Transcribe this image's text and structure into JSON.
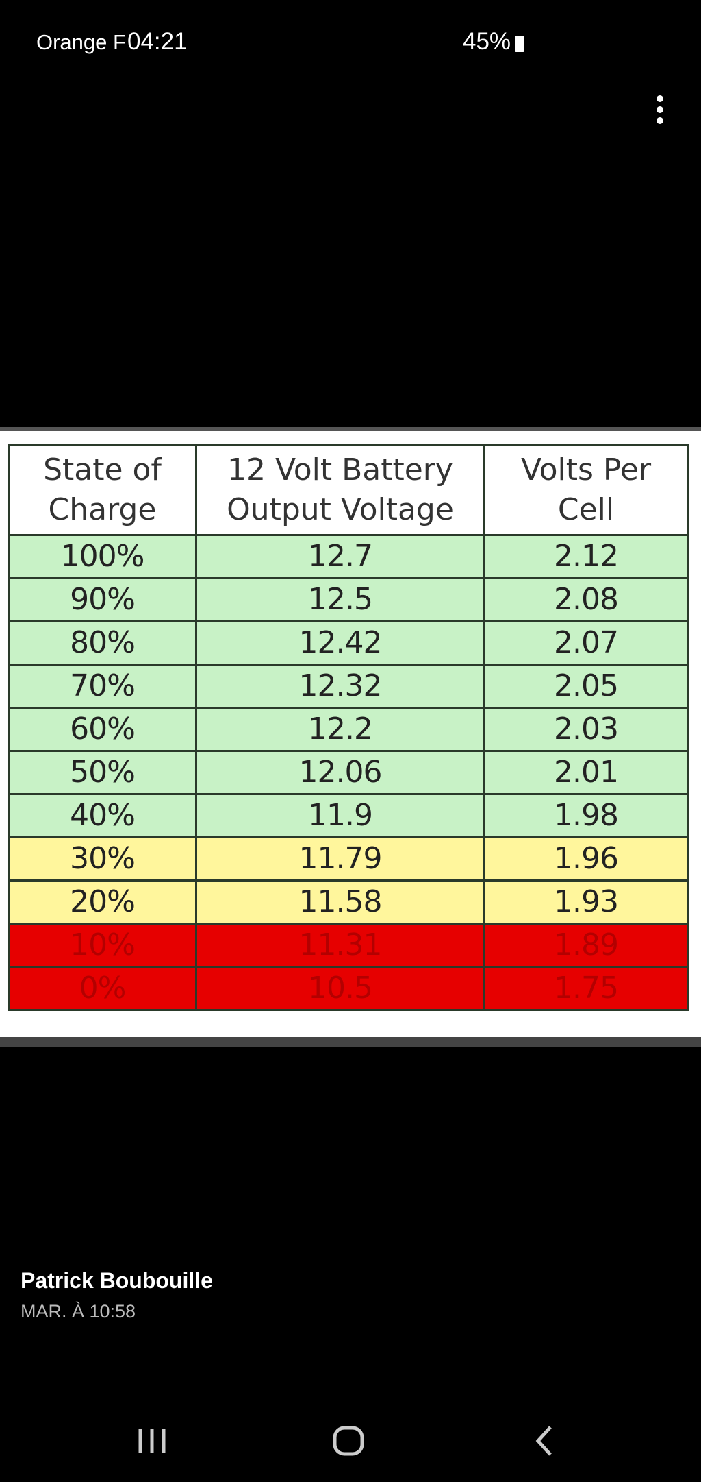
{
  "status_bar": {
    "carrier": "Orange F",
    "time": "04:21",
    "battery": "45%"
  },
  "table": {
    "header": [
      "State of Charge",
      "12 Volt Battery Output Voltage",
      "Volts Per Cell"
    ],
    "rows": [
      [
        "100%",
        "12.7",
        "2.12"
      ],
      [
        "90%",
        "12.5",
        "2.08"
      ],
      [
        "80%",
        "12.42",
        "2.07"
      ],
      [
        "70%",
        "12.32",
        "2.05"
      ],
      [
        "60%",
        "12.2",
        "2.03"
      ],
      [
        "50%",
        "12.06",
        "2.01"
      ],
      [
        "40%",
        "11.9",
        "1.98"
      ],
      [
        "30%",
        "11.79",
        "1.96"
      ],
      [
        "20%",
        "11.58",
        "1.93"
      ],
      [
        "10%",
        "11.31",
        "1.89"
      ],
      [
        "0%",
        "10.5",
        "1.75"
      ]
    ]
  },
  "post": {
    "author": "Patrick Boubouille",
    "date": "MAR. À 10:58"
  }
}
